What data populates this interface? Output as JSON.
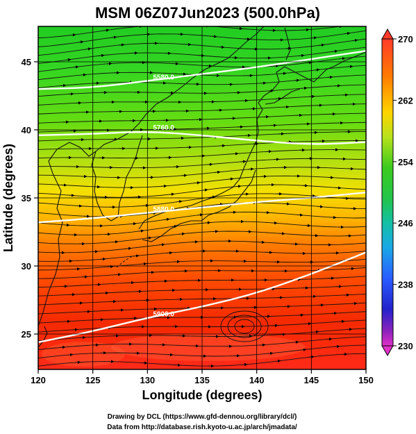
{
  "title": "MSM 06Z07Jun2023 (500.0hPa)",
  "x_axis": {
    "label": "Longitude (degrees)",
    "min": 120,
    "max": 150,
    "ticks": [
      "120",
      "125",
      "130",
      "135",
      "140",
      "145",
      "150"
    ]
  },
  "y_axis": {
    "label": "Latitude  (degrees)",
    "min": 22.4,
    "max": 47.6,
    "ticks": [
      "25",
      "30",
      "35",
      "40",
      "45"
    ]
  },
  "colorbar": {
    "min": 230,
    "max": 270,
    "ticks": [
      "230",
      "238",
      "246",
      "254",
      "262",
      "270"
    ]
  },
  "contours": [
    {
      "label": "5580.0",
      "lat_at_lon": [
        [
          120,
          43.0
        ],
        [
          125,
          43.1
        ],
        [
          130,
          43.6
        ],
        [
          135,
          44.1
        ],
        [
          140,
          44.6
        ],
        [
          145,
          45.2
        ],
        [
          150,
          45.8
        ]
      ]
    },
    {
      "label": "5760.0",
      "lat_at_lon": [
        [
          120,
          39.6
        ],
        [
          125,
          39.7
        ],
        [
          130,
          39.9
        ],
        [
          135,
          39.6
        ],
        [
          140,
          39.2
        ],
        [
          145,
          38.9
        ],
        [
          150,
          39.1
        ]
      ]
    },
    {
      "label": "5880.0",
      "lat_at_lon": [
        [
          120,
          33.2
        ],
        [
          125,
          33.5
        ],
        [
          130,
          33.9
        ],
        [
          135,
          34.3
        ],
        [
          140,
          34.7
        ],
        [
          145,
          35.0
        ],
        [
          150,
          35.4
        ]
      ]
    },
    {
      "label": "5900.0",
      "lat_at_lon": [
        [
          120,
          24.4
        ],
        [
          125,
          25.2
        ],
        [
          130,
          26.2
        ],
        [
          135,
          27.0
        ],
        [
          140,
          28.0
        ],
        [
          145,
          29.4
        ],
        [
          150,
          31.0
        ]
      ]
    }
  ],
  "credits": [
    "Drawing by DCL (https://www.gfd-dennou.org/library/dcl/)",
    "Data from http://database.rish.kyoto-u.ac.jp/arch/jmadata/"
  ]
}
